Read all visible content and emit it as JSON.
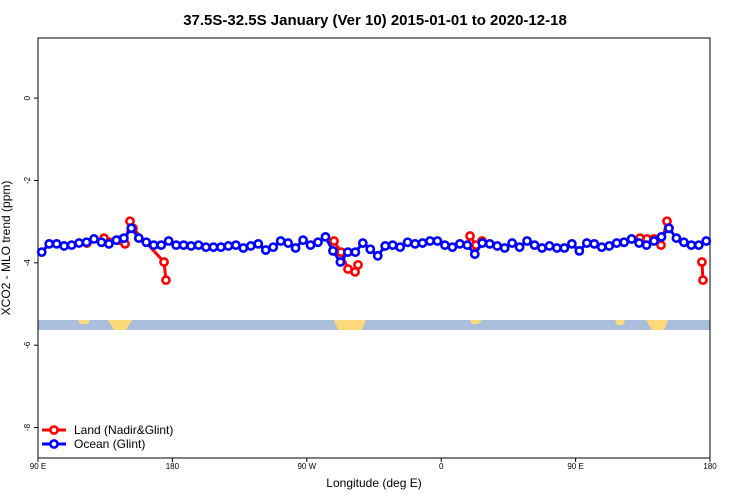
{
  "chart_data": {
    "type": "line",
    "title": "37.5S-32.5S January (Ver 10)   2015-01-01 to 2020-12-18",
    "x_label": "Longitude (deg E)",
    "y_label": "XCO2 - MLO trend (ppm)",
    "xlim": [
      90,
      540
    ],
    "ylim": [
      -8.74,
      1.46
    ],
    "xticks": [
      {
        "value": 90,
        "label": "90 E"
      },
      {
        "value": 180,
        "label": "180"
      },
      {
        "value": 270,
        "label": "90 W"
      },
      {
        "value": 360,
        "label": "0"
      },
      {
        "value": 450,
        "label": "90 E"
      },
      {
        "value": 540,
        "label": "180"
      }
    ],
    "yticks": [
      0,
      -2,
      -4,
      -6,
      -8
    ],
    "legend": "bottomleft",
    "series": [
      {
        "name": "Land (Nadir&Glint)",
        "color": "#ff0000",
        "x": [
          122.8,
          134.2,
          143.6,
          148.3,
          151.6,
          153.6,
          174.4,
          175.7,
          null,
          288.2,
          292.9,
          297.6,
          302.3,
          304.3,
          null,
          379.3,
          383.3,
          387.3,
          null,
          482.4,
          493.1,
          497.8,
          502.5,
          507.2,
          511.2,
          512.5,
          null,
          534.6,
          535.3
        ],
        "values": [
          -3.52,
          -3.4,
          -3.45,
          -3.54,
          -2.99,
          -3.16,
          -3.98,
          -4.42,
          null,
          -3.47,
          -3.74,
          -4.15,
          -4.22,
          -4.05,
          null,
          -3.35,
          -3.57,
          -3.47,
          null,
          -3.5,
          -3.4,
          -3.42,
          -3.42,
          -3.57,
          -2.99,
          -3.16,
          null,
          -3.98,
          -4.42
        ]
      },
      {
        "name": "Ocean (Glint)",
        "color": "#0000ff",
        "x": [
          92.5,
          97.5,
          102.5,
          107.5,
          112.5,
          117.5,
          122.5,
          127.5,
          132.5,
          137.5,
          142.5,
          147.5,
          152.5,
          157.5,
          162.5,
          167.5,
          172.5,
          177.5,
          182.5,
          187.5,
          192.5,
          197.5,
          202.5,
          207.5,
          212.5,
          217.5,
          222.5,
          227.5,
          232.5,
          237.5,
          242.5,
          247.5,
          252.5,
          257.5,
          262.5,
          267.5,
          272.5,
          277.5,
          282.5,
          287.5,
          292.5,
          297.5,
          302.5,
          307.5,
          312.5,
          317.5,
          322.5,
          327.5,
          332.5,
          337.5,
          342.5,
          347.5,
          352.5,
          357.5,
          362.5,
          367.5,
          372.5,
          377.5,
          382.5,
          387.5,
          392.5,
          397.5,
          402.5,
          407.5,
          412.5,
          417.5,
          422.5,
          427.5,
          432.5,
          437.5,
          442.5,
          447.5,
          452.5,
          457.5,
          462.5,
          467.5,
          472.5,
          477.5,
          482.5,
          487.5,
          492.5,
          497.5,
          502.5,
          507.5,
          512.5,
          517.5,
          522.5,
          527.5,
          532.5,
          537.5
        ],
        "values": [
          -3.74,
          -3.54,
          -3.54,
          -3.59,
          -3.57,
          -3.52,
          -3.5,
          -3.42,
          -3.5,
          -3.54,
          -3.45,
          -3.4,
          -3.16,
          -3.4,
          -3.5,
          -3.57,
          -3.57,
          -3.47,
          -3.57,
          -3.57,
          -3.59,
          -3.57,
          -3.62,
          -3.62,
          -3.62,
          -3.59,
          -3.57,
          -3.64,
          -3.59,
          -3.54,
          -3.69,
          -3.62,
          -3.47,
          -3.52,
          -3.64,
          -3.45,
          -3.57,
          -3.5,
          -3.37,
          -3.71,
          -3.98,
          -3.74,
          -3.74,
          -3.52,
          -3.67,
          -3.83,
          -3.59,
          -3.57,
          -3.62,
          -3.5,
          -3.54,
          -3.52,
          -3.47,
          -3.47,
          -3.57,
          -3.62,
          -3.54,
          -3.57,
          -3.79,
          -3.52,
          -3.54,
          -3.59,
          -3.64,
          -3.52,
          -3.62,
          -3.47,
          -3.57,
          -3.64,
          -3.59,
          -3.64,
          -3.64,
          -3.54,
          -3.71,
          -3.52,
          -3.54,
          -3.62,
          -3.59,
          -3.52,
          -3.5,
          -3.42,
          -3.52,
          -3.57,
          -3.47,
          -3.37,
          -3.16,
          -3.4,
          -3.5,
          -3.57,
          -3.57,
          -3.47
        ]
      }
    ]
  }
}
